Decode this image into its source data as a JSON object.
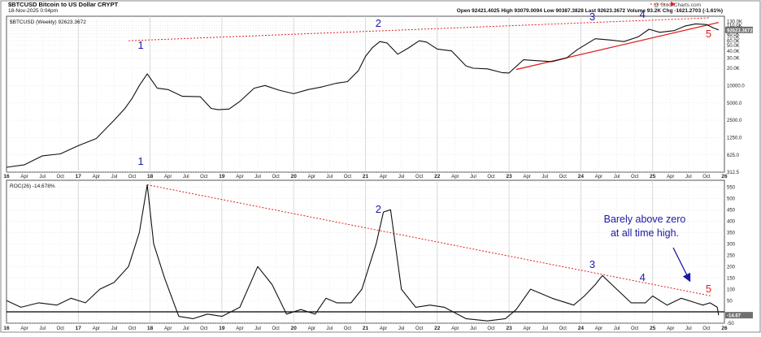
{
  "header": {
    "symbol_line": "$BTCUSD Bitcoin to US Dollar CRYPT",
    "date_line": "18-Nov-2025 0:04pm",
    "watermark": "@ StockCharts.com",
    "quote_line": "Open 92421.4025  High 93079.0094  Low 90387.3828  Last 92623.3672   Volume 93.2K  Chg -1621.2703 (-1.61%)"
  },
  "colors": {
    "price_line": "#111111",
    "trend_red": "#e02020",
    "annotation_blue": "#1a1aa8",
    "highlight_red": "#e02020",
    "grid": "#d0d0d0",
    "last_value_box": "#6f6f6f"
  },
  "chart_data": [
    {
      "type": "line",
      "panel": "price",
      "legend": "$BTCUSD (Weekly) 92623.3672",
      "scale": "log",
      "ylim": [
        312.5,
        160000
      ],
      "ytick_labels": [
        "130.0K",
        "110.0K",
        "100.0K",
        "90.0K",
        "80.0K",
        "70.0K",
        "60.0K",
        "50.0K",
        "40.0K",
        "30.0K",
        "20.0K",
        "10000.0",
        "5000.0",
        "2500.0",
        "1250.0",
        "625.0",
        "312.5"
      ],
      "last_value_label": "92623.3672",
      "x_labels": [
        "16",
        "Apr",
        "Jul",
        "Oct",
        "17",
        "Apr",
        "Jul",
        "Oct",
        "18",
        "Apr",
        "Jul",
        "Oct",
        "19",
        "Apr",
        "Jul",
        "Oct",
        "20",
        "Apr",
        "Jul",
        "Oct",
        "21",
        "Apr",
        "Jul",
        "Oct",
        "22",
        "Apr",
        "Jul",
        "Oct",
        "23",
        "Apr",
        "Jul",
        "Oct",
        "24",
        "Apr",
        "Jul",
        "Oct",
        "25",
        "Apr",
        "Jul",
        "Oct",
        "26"
      ],
      "x": [
        2016.0,
        2016.25,
        2016.5,
        2016.75,
        2017.0,
        2017.25,
        2017.5,
        2017.65,
        2017.75,
        2017.85,
        2017.96,
        2018.1,
        2018.25,
        2018.45,
        2018.7,
        2018.85,
        2018.95,
        2019.1,
        2019.25,
        2019.45,
        2019.6,
        2019.8,
        2020.0,
        2020.2,
        2020.4,
        2020.6,
        2020.75,
        2020.9,
        2021.0,
        2021.1,
        2021.2,
        2021.3,
        2021.45,
        2021.6,
        2021.75,
        2021.85,
        2022.0,
        2022.2,
        2022.4,
        2022.5,
        2022.7,
        2022.9,
        2023.0,
        2023.2,
        2023.4,
        2023.6,
        2023.8,
        2023.95,
        2024.2,
        2024.4,
        2024.6,
        2024.8,
        2024.95,
        2025.1,
        2025.3,
        2025.45,
        2025.6,
        2025.75,
        2025.85,
        2025.92
      ],
      "y": [
        380,
        420,
        600,
        650,
        900,
        1200,
        2500,
        4000,
        6000,
        10000,
        16000,
        9000,
        8500,
        6500,
        6400,
        4000,
        3800,
        3900,
        5300,
        9000,
        10000,
        8300,
        7200,
        8500,
        9500,
        11000,
        11700,
        18000,
        32000,
        46000,
        58000,
        55000,
        35000,
        45000,
        60000,
        57000,
        43000,
        40000,
        22000,
        20000,
        19500,
        16800,
        16500,
        28000,
        27000,
        26000,
        30000,
        42000,
        65000,
        62000,
        58000,
        70000,
        95000,
        84000,
        90000,
        108000,
        118000,
        115000,
        100000,
        92623
      ],
      "series": [
        {
          "name": ""
        }
      ],
      "annotations": [
        {
          "label": "1",
          "x": 2017.96,
          "color": "blue"
        },
        {
          "label": "2",
          "x": 2021.27,
          "color": "blue"
        },
        {
          "label": "3",
          "x": 2024.25,
          "color": "blue"
        },
        {
          "label": "4",
          "x": 2024.95,
          "color": "blue"
        },
        {
          "label": "5",
          "x": 2025.87,
          "color": "red"
        }
      ],
      "trendlines": [
        {
          "style": "dashed",
          "x": [
            2017.7,
            2025.8
          ],
          "y": [
            60000,
            150000
          ]
        },
        {
          "style": "solid",
          "x": [
            2023.1,
            2025.92
          ],
          "y": [
            19000,
            125000
          ]
        }
      ]
    },
    {
      "type": "line",
      "panel": "roc",
      "legend": "ROC(26) -14.678%",
      "ylim": [
        -50,
        580
      ],
      "ytick_labels": [
        "550",
        "500",
        "450",
        "400",
        "350",
        "300",
        "250",
        "200",
        "150",
        "100",
        "50",
        "-50"
      ],
      "last_value_label": "-14.67",
      "zero_line": true,
      "x_labels": [
        "16",
        "Apr",
        "Jul",
        "Oct",
        "17",
        "Apr",
        "Jul",
        "Oct",
        "18",
        "Apr",
        "Jul",
        "Oct",
        "19",
        "Apr",
        "Jul",
        "Oct",
        "20",
        "Apr",
        "Jul",
        "Oct",
        "21",
        "Apr",
        "Jul",
        "Oct",
        "22",
        "Apr",
        "Jul",
        "Oct",
        "23",
        "Apr",
        "Jul",
        "Oct",
        "24",
        "Apr",
        "Jul",
        "Oct",
        "25",
        "Apr",
        "Jul",
        "Oct",
        "26"
      ],
      "x": [
        2016.0,
        2016.2,
        2016.45,
        2016.7,
        2016.9,
        2017.1,
        2017.3,
        2017.5,
        2017.7,
        2017.85,
        2017.96,
        2018.05,
        2018.2,
        2018.4,
        2018.6,
        2018.8,
        2019.0,
        2019.25,
        2019.5,
        2019.7,
        2019.9,
        2020.1,
        2020.3,
        2020.45,
        2020.6,
        2020.8,
        2020.95,
        2021.05,
        2021.15,
        2021.25,
        2021.35,
        2021.5,
        2021.7,
        2021.9,
        2022.1,
        2022.4,
        2022.7,
        2022.95,
        2023.1,
        2023.3,
        2023.6,
        2023.9,
        2024.05,
        2024.2,
        2024.3,
        2024.5,
        2024.7,
        2024.9,
        2025.0,
        2025.2,
        2025.4,
        2025.6,
        2025.7,
        2025.8,
        2025.9,
        2025.92
      ],
      "y": [
        50,
        20,
        40,
        30,
        60,
        40,
        100,
        130,
        200,
        350,
        560,
        300,
        150,
        -20,
        -30,
        -10,
        -20,
        20,
        200,
        120,
        -10,
        10,
        -10,
        60,
        40,
        40,
        100,
        200,
        300,
        440,
        450,
        100,
        20,
        30,
        20,
        -30,
        -40,
        -30,
        10,
        100,
        60,
        30,
        70,
        120,
        160,
        100,
        40,
        40,
        70,
        30,
        60,
        40,
        30,
        40,
        20,
        -14.67
      ],
      "series": [
        {
          "name": ""
        }
      ],
      "annotations": [
        {
          "label": "1",
          "x": 2017.96,
          "color": "blue"
        },
        {
          "label": "2",
          "x": 2021.27,
          "color": "blue"
        },
        {
          "label": "3",
          "x": 2024.25,
          "color": "blue"
        },
        {
          "label": "4",
          "x": 2024.95,
          "color": "blue"
        },
        {
          "label": "5",
          "x": 2025.87,
          "color": "red"
        },
        {
          "label": "Barely above zero at all time high.",
          "type": "note",
          "lines": [
            "Barely above zero",
            "at all time high."
          ]
        }
      ],
      "trendlines": [
        {
          "style": "dashed",
          "x": [
            2017.96,
            2025.82
          ],
          "y": [
            560,
            70
          ]
        }
      ]
    }
  ]
}
